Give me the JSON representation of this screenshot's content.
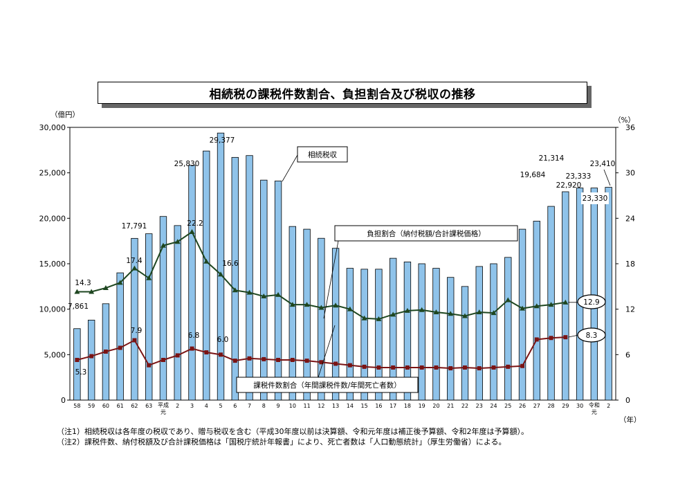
{
  "title": "相続税の課税件数割合、負担割合及び税収の推移",
  "notes": [
    "（注1）相続税収は各年度の税収であり、贈与税収を含む（平成30年度以前は決算額、令和元年度は補正後予算額、令和2年度は予算額）。",
    "（注2）課税件数、納付税額及び合計課税価格は「国税庁統計年報書」により、死亡者数は「人口動態統計」（厚生労働省）による。"
  ],
  "chart_data": {
    "type": "bar+line",
    "x_categories": [
      "58",
      "59",
      "60",
      "61",
      "62",
      "63",
      "平成元",
      "2",
      "3",
      "4",
      "5",
      "6",
      "7",
      "8",
      "9",
      "10",
      "11",
      "12",
      "13",
      "14",
      "15",
      "16",
      "17",
      "18",
      "19",
      "20",
      "21",
      "22",
      "23",
      "24",
      "25",
      "26",
      "27",
      "28",
      "29",
      "30",
      "令和元",
      "2"
    ],
    "x_unit": "（年）",
    "y_left": {
      "unit": "（億円）",
      "range": [
        0,
        30000
      ],
      "ticks": [
        "0",
        "5,000",
        "10,000",
        "15,000",
        "20,000",
        "25,000",
        "30,000"
      ]
    },
    "y_right": {
      "unit": "（%）",
      "range": [
        0,
        36
      ],
      "ticks": [
        "0",
        "6",
        "12",
        "18",
        "24",
        "30",
        "36"
      ]
    },
    "series": [
      {
        "name": "相続税収",
        "type": "bar",
        "axis": "left",
        "color": "#8fc3ea",
        "values": [
          7861,
          8800,
          10600,
          14000,
          17791,
          18300,
          20200,
          19200,
          25830,
          27400,
          29377,
          26700,
          26900,
          24200,
          24100,
          19100,
          18800,
          17800,
          16700,
          14500,
          14400,
          14400,
          15600,
          15200,
          15000,
          14500,
          13500,
          12500,
          14700,
          15000,
          15700,
          18800,
          19684,
          21314,
          22920,
          23333,
          23330,
          23410
        ],
        "data_labels": [
          {
            "index": 0,
            "text": "7,861"
          },
          {
            "index": 4,
            "text": "17,791"
          },
          {
            "index": 8,
            "text": "25,830"
          },
          {
            "index": 10,
            "text": "29,377"
          },
          {
            "index": 32,
            "text": "19,684"
          },
          {
            "index": 33,
            "text": "21,314"
          },
          {
            "index": 34,
            "text": "22,920"
          },
          {
            "index": 35,
            "text": "23,333"
          },
          {
            "index": 36,
            "text": "23,330"
          },
          {
            "index": 37,
            "text": "23,410"
          }
        ]
      },
      {
        "name": "負担割合（納付税額/合計課税価格）",
        "type": "line",
        "axis": "right",
        "color": "#1e4620",
        "values": [
          14.3,
          14.3,
          14.8,
          15.5,
          17.4,
          16.1,
          20.4,
          20.9,
          22.2,
          18.3,
          16.6,
          14.5,
          14.2,
          13.7,
          13.9,
          12.6,
          12.6,
          12.2,
          12.5,
          12.0,
          10.8,
          10.7,
          11.3,
          11.8,
          11.9,
          11.6,
          11.4,
          11.1,
          11.6,
          11.5,
          13.2,
          12.1,
          12.4,
          12.6,
          12.9
        ],
        "data_labels": [
          {
            "index": 0,
            "text": "14.3"
          },
          {
            "index": 4,
            "text": "17.4"
          },
          {
            "index": 8,
            "text": "22.2"
          },
          {
            "index": 10,
            "text": "16.6"
          },
          {
            "index": 34,
            "text": "12.9"
          }
        ]
      },
      {
        "name": "課税件数割合（年間課税件数/年間死亡者数）",
        "type": "line",
        "axis": "right",
        "color": "#7a1414",
        "values": [
          5.3,
          5.8,
          6.4,
          6.9,
          7.9,
          4.6,
          5.3,
          5.9,
          6.8,
          6.3,
          6.0,
          5.2,
          5.5,
          5.4,
          5.3,
          5.3,
          5.2,
          5.0,
          4.8,
          4.6,
          4.4,
          4.3,
          4.3,
          4.3,
          4.3,
          4.3,
          4.2,
          4.3,
          4.2,
          4.3,
          4.4,
          4.5,
          8.0,
          8.2,
          8.3
        ],
        "data_labels": [
          {
            "index": 0,
            "text": "5.3"
          },
          {
            "index": 4,
            "text": "7.9"
          },
          {
            "index": 8,
            "text": "6.8"
          },
          {
            "index": 10,
            "text": "6.0"
          },
          {
            "index": 34,
            "text": "8.3"
          }
        ]
      }
    ],
    "callouts": {
      "revenue": "相続税収",
      "burden": "負担割合（納付税額/合計課税価格）",
      "count": "課税件数割合（年間課税件数/年間死亡者数）"
    },
    "colors": {
      "bar": "#8fc3ea",
      "bar_edge": "#000000",
      "burden_line": "#1e4620",
      "count_line": "#7a1414"
    }
  }
}
